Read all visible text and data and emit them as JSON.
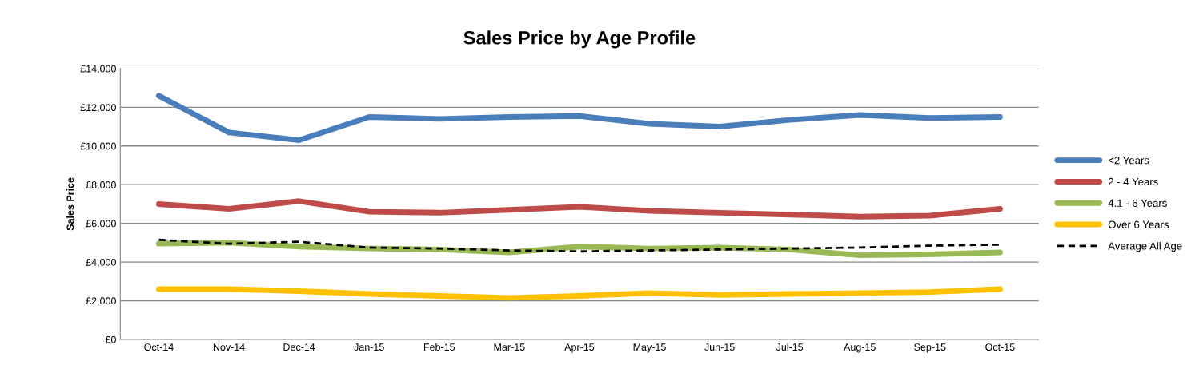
{
  "chart_data": {
    "type": "line",
    "title": "Sales Price by Age Profile",
    "ylabel": "Sales Price",
    "categories": [
      "Oct-14",
      "Nov-14",
      "Dec-14",
      "Jan-15",
      "Feb-15",
      "Mar-15",
      "Apr-15",
      "May-15",
      "Jun-15",
      "Jul-15",
      "Aug-15",
      "Sep-15",
      "Oct-15"
    ],
    "series": [
      {
        "name": "<2 Years",
        "color": "#4a7ebb",
        "values": [
          12600,
          10700,
          10300,
          11500,
          11400,
          11500,
          11550,
          11150,
          11000,
          11350,
          11600,
          11450,
          11500
        ]
      },
      {
        "name": "2 - 4 Years",
        "color": "#be4b48",
        "values": [
          7000,
          6750,
          7150,
          6600,
          6550,
          6700,
          6850,
          6650,
          6550,
          6450,
          6350,
          6400,
          6750
        ]
      },
      {
        "name": "4.1 - 6 Years",
        "color": "#98b954",
        "values": [
          4950,
          5000,
          4800,
          4700,
          4650,
          4500,
          4800,
          4700,
          4750,
          4650,
          4350,
          4400,
          4500
        ]
      },
      {
        "name": "Over 6 Years",
        "color": "#ffc000",
        "values": [
          2600,
          2600,
          2500,
          2350,
          2250,
          2150,
          2250,
          2400,
          2300,
          2350,
          2400,
          2450,
          2600
        ]
      },
      {
        "name": "Average All Age",
        "color": "#000000",
        "line_style": "dashed",
        "values": [
          5150,
          4950,
          5050,
          4750,
          4700,
          4600,
          4550,
          4600,
          4650,
          4700,
          4750,
          4850,
          4900
        ]
      }
    ],
    "ylim": [
      0,
      14000
    ],
    "yticks": [
      {
        "value": 0,
        "label": "£0"
      },
      {
        "value": 2000,
        "label": "£2,000"
      },
      {
        "value": 4000,
        "label": "£4,000"
      },
      {
        "value": 6000,
        "label": "£6,000"
      },
      {
        "value": 8000,
        "label": "£8,000"
      },
      {
        "value": 10000,
        "label": "£10,000"
      },
      {
        "value": 12000,
        "label": "£12,000"
      },
      {
        "value": 14000,
        "label": "£14,000"
      }
    ],
    "grid": "y",
    "legend": "right",
    "line_style": "solid",
    "marker": "none"
  }
}
